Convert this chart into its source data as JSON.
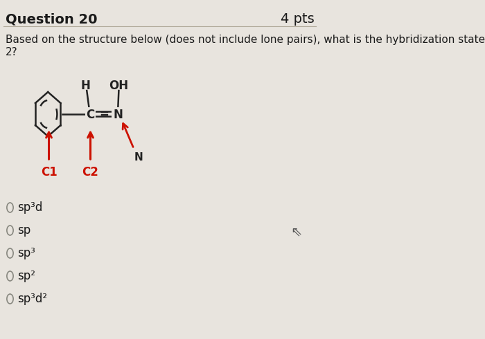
{
  "title": "Question 20",
  "pts": "4 pts",
  "question_line1": "Based on the structure below (does not include lone pairs), what is the hybridization state of Carbon",
  "question_line2": "2?",
  "bg_color": "#e8e4de",
  "text_color": "#1a1a1a",
  "red_color": "#cc1100",
  "dark_color": "#222222",
  "title_font_size": 14,
  "body_font_size": 11,
  "option_font_size": 12,
  "options": [
    "sp³d",
    "sp",
    "sp³",
    "sp²",
    "sp³d²"
  ]
}
